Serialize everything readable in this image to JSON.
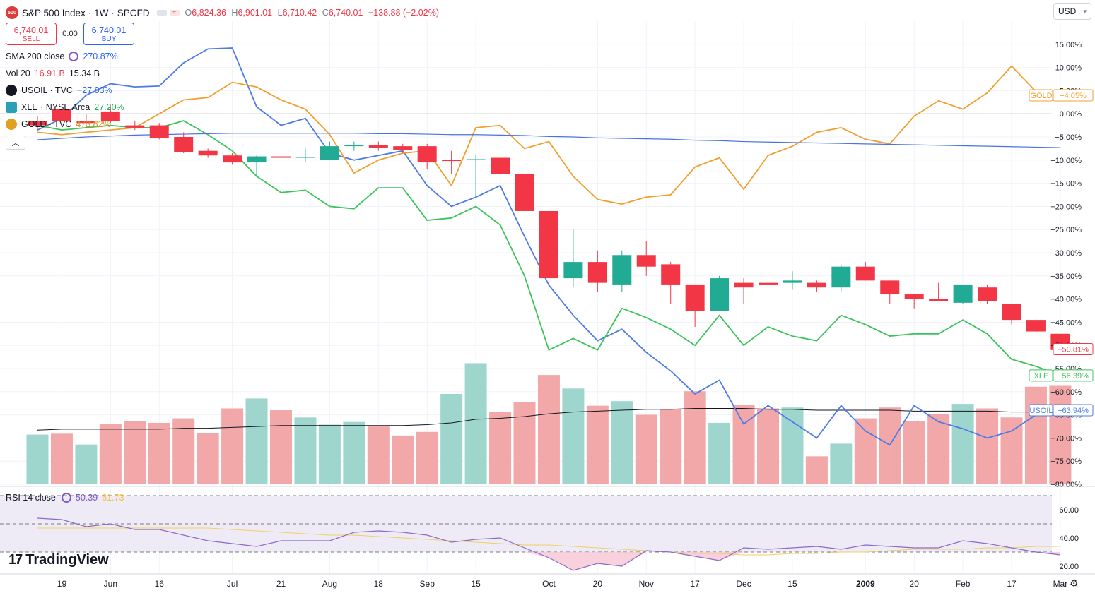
{
  "header": {
    "logo_text": "500",
    "symbol": "S&P 500 Index",
    "interval": "1W",
    "exchange": "SPCFD",
    "o_label": "O",
    "o": "6,824.36",
    "h_label": "H",
    "h": "6,901.01",
    "l_label": "L",
    "l": "6,710.42",
    "c_label": "C",
    "c": "6,740.01",
    "change": "−138.88 (−2.02%)"
  },
  "trade": {
    "sell_price": "6,740.01",
    "sell_label": "SELL",
    "spread": "0.00",
    "buy_price": "6,740.01",
    "buy_label": "BUY"
  },
  "indicators": {
    "sma": {
      "name": "SMA 200 close",
      "value": "270.87%"
    },
    "vol": {
      "name": "Vol 20",
      "v1": "16.91 B",
      "v2": "15.34 B"
    },
    "usoil": {
      "name": "USOIL · TVC",
      "value": "−27.83%"
    },
    "xle": {
      "name": "XLE · NYSE Arca",
      "value": "27.20%"
    },
    "gold": {
      "name": "GOLD · TVC",
      "value": "473.82%"
    },
    "rsi": {
      "name": "RSI 14 close",
      "v1": "50.39",
      "v2": "61.73"
    }
  },
  "currency": "USD",
  "brand": "TradingView",
  "colors": {
    "up": "#22ab94",
    "down": "#f23645",
    "usoil": "#4c7be8",
    "xle": "#3cc45a",
    "gold": "#f0a030",
    "sma": "#4a72e0",
    "rsi": "#8c6bc8",
    "rsi_ma": "#f0d060"
  },
  "chart_data": {
    "type": "candlestick",
    "y_unit": "percent",
    "ylim": [
      -80,
      20
    ],
    "y_ticks": [
      "15.00%",
      "10.00%",
      "5.00%",
      "0.00%",
      "−5.00%",
      "−10.00%",
      "−15.00%",
      "−20.00%",
      "−25.00%",
      "−30.00%",
      "−35.00%",
      "−40.00%",
      "−45.00%",
      "−50.00%",
      "−55.00%",
      "−60.00%",
      "−65.00%",
      "−70.00%",
      "−75.00%",
      "−80.00%"
    ],
    "y_tick_values": [
      15,
      10,
      5,
      0,
      -5,
      -10,
      -15,
      -20,
      -25,
      -30,
      -35,
      -40,
      -45,
      -50,
      -55,
      -60,
      -65,
      -70,
      -75,
      -80
    ],
    "x_ticks": [
      {
        "i": 1,
        "label": "19"
      },
      {
        "i": 3,
        "label": "Jun"
      },
      {
        "i": 5,
        "label": "16"
      },
      {
        "i": 8,
        "label": "Jul"
      },
      {
        "i": 10,
        "label": "21"
      },
      {
        "i": 12,
        "label": "Aug"
      },
      {
        "i": 14,
        "label": "18"
      },
      {
        "i": 16,
        "label": "Sep"
      },
      {
        "i": 18,
        "label": "15"
      },
      {
        "i": 21,
        "label": "Oct"
      },
      {
        "i": 23,
        "label": "20"
      },
      {
        "i": 25,
        "label": "Nov"
      },
      {
        "i": 27,
        "label": "17"
      },
      {
        "i": 29,
        "label": "Dec"
      },
      {
        "i": 31,
        "label": "15"
      },
      {
        "i": 34,
        "label": "2009"
      },
      {
        "i": 36,
        "label": "20"
      },
      {
        "i": 38,
        "label": "Feb"
      },
      {
        "i": 40,
        "label": "17"
      },
      {
        "i": 42,
        "label": "Mar"
      }
    ],
    "candles": [
      {
        "o": -1.5,
        "h": -0.5,
        "l": -3.5,
        "c": -2.5
      },
      {
        "o": 1.0,
        "h": 2.0,
        "l": -1.0,
        "c": -1.5
      },
      {
        "o": -1.5,
        "h": 0.0,
        "l": -3.0,
        "c": -2.0
      },
      {
        "o": 0.5,
        "h": 1.5,
        "l": -2.0,
        "c": -1.5
      },
      {
        "o": -2.5,
        "h": -1.5,
        "l": -3.5,
        "c": -3.0
      },
      {
        "o": -2.5,
        "h": -2.0,
        "l": -5.5,
        "c": -5.3
      },
      {
        "o": -5.0,
        "h": -4.0,
        "l": -8.5,
        "c": -8.2
      },
      {
        "o": -8.0,
        "h": -7.5,
        "l": -9.5,
        "c": -9.0
      },
      {
        "o": -9.0,
        "h": -8.5,
        "l": -11.0,
        "c": -10.5
      },
      {
        "o": -10.5,
        "h": -9.0,
        "l": -13.5,
        "c": -9.2
      },
      {
        "o": -9.2,
        "h": -7.5,
        "l": -10.0,
        "c": -9.5
      },
      {
        "o": -9.5,
        "h": -7.5,
        "l": -10.5,
        "c": -9.3
      },
      {
        "o": -10.0,
        "h": -6.0,
        "l": -10.0,
        "c": -7.0
      },
      {
        "o": -7.0,
        "h": -6.0,
        "l": -8.0,
        "c": -6.8
      },
      {
        "o": -6.8,
        "h": -6.0,
        "l": -8.0,
        "c": -7.3
      },
      {
        "o": -7.0,
        "h": -6.5,
        "l": -8.5,
        "c": -7.8
      },
      {
        "o": -7.0,
        "h": -6.5,
        "l": -12.0,
        "c": -10.5
      },
      {
        "o": -10.0,
        "h": -8.0,
        "l": -13.0,
        "c": -10.2
      },
      {
        "o": -10.0,
        "h": -9.0,
        "l": -18.0,
        "c": -9.8
      },
      {
        "o": -9.5,
        "h": -9.5,
        "l": -15.0,
        "c": -13.0
      },
      {
        "o": -13.0,
        "h": -13.0,
        "l": -21.0,
        "c": -21.0
      },
      {
        "o": -21.0,
        "h": -21.0,
        "l": -39.5,
        "c": -35.5
      },
      {
        "o": -35.5,
        "h": -25.0,
        "l": -37.5,
        "c": -32.0
      },
      {
        "o": -32.0,
        "h": -29.5,
        "l": -38.5,
        "c": -36.5
      },
      {
        "o": -37.0,
        "h": -29.5,
        "l": -38.5,
        "c": -30.5
      },
      {
        "o": -30.5,
        "h": -27.5,
        "l": -35.0,
        "c": -33.0
      },
      {
        "o": -32.5,
        "h": -32.0,
        "l": -41.0,
        "c": -37.0
      },
      {
        "o": -37.0,
        "h": -37.0,
        "l": -46.0,
        "c": -42.5
      },
      {
        "o": -42.5,
        "h": -35.0,
        "l": -42.5,
        "c": -35.5
      },
      {
        "o": -36.5,
        "h": -35.5,
        "l": -41.0,
        "c": -37.5
      },
      {
        "o": -36.5,
        "h": -34.5,
        "l": -38.5,
        "c": -37.0
      },
      {
        "o": -36.5,
        "h": -34.0,
        "l": -38.0,
        "c": -36.0
      },
      {
        "o": -36.5,
        "h": -36.0,
        "l": -38.5,
        "c": -37.5
      },
      {
        "o": -37.5,
        "h": -32.5,
        "l": -38.5,
        "c": -33.0
      },
      {
        "o": -33.0,
        "h": -32.0,
        "l": -36.0,
        "c": -36.0
      },
      {
        "o": -36.0,
        "h": -36.0,
        "l": -41.0,
        "c": -39.0
      },
      {
        "o": -39.0,
        "h": -39.0,
        "l": -42.0,
        "c": -40.0
      },
      {
        "o": -40.0,
        "h": -36.5,
        "l": -40.5,
        "c": -40.5
      },
      {
        "o": -40.8,
        "h": -37.0,
        "l": -41.0,
        "c": -37.0
      },
      {
        "o": -37.5,
        "h": -37.0,
        "l": -41.0,
        "c": -40.5
      },
      {
        "o": -41.0,
        "h": -41.0,
        "l": -45.5,
        "c": -44.5
      },
      {
        "o": -44.5,
        "h": -44.0,
        "l": -47.5,
        "c": -47.0
      },
      {
        "o": -47.5,
        "h": -47.5,
        "l": -52.0,
        "c": -51.0
      }
    ],
    "series": [
      {
        "name": "USOIL",
        "last_label": "−63.94%",
        "values": [
          -3.5,
          -1.0,
          4.0,
          6.5,
          5.8,
          6.0,
          11.0,
          14.0,
          14.2,
          1.5,
          -2.5,
          -1.0,
          -8.5,
          -10.0,
          -9.0,
          -8.0,
          -15.5,
          -20.0,
          -18.0,
          -15.5,
          -26.5,
          -37.0,
          -43.5,
          -49.0,
          -46.5,
          -51.5,
          -55.5,
          -60.5,
          -57.5,
          -67.0,
          -63.0,
          -66.5,
          -70.0,
          -63.0,
          -68.5,
          -71.5,
          -63.0,
          -66.5,
          -68.0,
          -70.0,
          -68.5,
          -65.0,
          -64.0
        ]
      },
      {
        "name": "XLE",
        "last_label": "−56.39%",
        "values": [
          -2.5,
          -3.5,
          -3.0,
          -2.5,
          -3.0,
          -3.0,
          -1.5,
          -4.5,
          -8.0,
          -13.5,
          -17.0,
          -16.5,
          -20.0,
          -20.5,
          -16.0,
          -16.0,
          -23.0,
          -22.5,
          -20.0,
          -24.0,
          -35.0,
          -51.0,
          -48.5,
          -51.0,
          -42.0,
          -44.0,
          -46.5,
          -50.0,
          -43.5,
          -50.0,
          -46.0,
          -48.0,
          -49.0,
          -43.5,
          -45.5,
          -48.0,
          -47.5,
          -47.5,
          -44.5,
          -47.5,
          -53.0,
          -54.5,
          -56.5
        ]
      },
      {
        "name": "GOLD",
        "last_label": "+4.05%",
        "values": [
          -4.0,
          -4.5,
          -4.0,
          -3.5,
          -3.0,
          0.0,
          3.0,
          3.5,
          6.8,
          5.8,
          3.0,
          1.0,
          -4.5,
          -12.8,
          -10.0,
          -8.5,
          -8.0,
          -15.5,
          -3.0,
          -2.5,
          -7.5,
          -6.0,
          -13.5,
          -18.5,
          -19.5,
          -18.0,
          -17.5,
          -11.5,
          -9.5,
          -16.3,
          -9.0,
          -7.0,
          -4.0,
          -3.0,
          -5.5,
          -6.5,
          -0.5,
          2.8,
          1.0,
          4.5,
          10.3,
          4.8,
          4.0
        ]
      },
      {
        "name": "SMA 200",
        "values": [
          -5.6,
          -5.3,
          -5.0,
          -4.8,
          -4.6,
          -4.5,
          -4.4,
          -4.3,
          -4.2,
          -4.2,
          -4.2,
          -4.2,
          -4.2,
          -4.2,
          -4.3,
          -4.3,
          -4.4,
          -4.5,
          -4.5,
          -4.6,
          -4.7,
          -4.9,
          -5.0,
          -5.2,
          -5.3,
          -5.4,
          -5.5,
          -5.7,
          -5.8,
          -6.0,
          -6.1,
          -6.2,
          -6.3,
          -6.4,
          -6.5,
          -6.6,
          -6.7,
          -6.8,
          -6.9,
          -7.0,
          -7.1,
          -7.2,
          -7.3
        ]
      }
    ],
    "volume": {
      "values": [
        0.55,
        0.56,
        0.44,
        0.67,
        0.7,
        0.68,
        0.73,
        0.57,
        0.84,
        0.95,
        0.82,
        0.74,
        0.66,
        0.69,
        0.64,
        0.54,
        0.58,
        1.0,
        1.34,
        0.8,
        0.91,
        1.21,
        1.06,
        0.87,
        0.92,
        0.77,
        0.83,
        1.03,
        0.68,
        0.88,
        0.84,
        0.85,
        0.31,
        0.45,
        0.73,
        0.85,
        0.7,
        0.78,
        0.89,
        0.84,
        0.74,
        1.08,
        1.09
      ],
      "up": [
        true,
        false,
        true,
        false,
        false,
        false,
        false,
        false,
        false,
        true,
        false,
        true,
        true,
        true,
        false,
        false,
        false,
        true,
        true,
        false,
        false,
        false,
        true,
        false,
        true,
        false,
        false,
        false,
        true,
        false,
        false,
        true,
        false,
        true,
        false,
        false,
        false,
        false,
        true,
        false,
        false,
        false,
        false
      ],
      "ma": [
        0.6,
        0.61,
        0.61,
        0.61,
        0.61,
        0.61,
        0.62,
        0.62,
        0.63,
        0.64,
        0.65,
        0.65,
        0.65,
        0.65,
        0.65,
        0.65,
        0.66,
        0.68,
        0.72,
        0.73,
        0.75,
        0.78,
        0.8,
        0.81,
        0.82,
        0.83,
        0.83,
        0.84,
        0.84,
        0.84,
        0.83,
        0.83,
        0.82,
        0.82,
        0.82,
        0.82,
        0.81,
        0.81,
        0.81,
        0.81,
        0.8,
        0.8,
        0.8
      ]
    },
    "rsi": {
      "ylim": [
        15,
        75
      ],
      "y_ticks": [
        "60.00",
        "40.00",
        "20.00"
      ],
      "y_tick_values": [
        60,
        40,
        20
      ],
      "bands": [
        70,
        50,
        30
      ],
      "values": [
        54,
        53,
        48,
        50,
        46,
        46,
        42,
        38,
        36,
        34,
        38,
        38,
        38,
        44,
        45,
        44,
        42,
        37,
        39,
        40,
        33,
        26,
        17,
        22,
        20,
        31,
        30,
        27,
        24,
        33,
        32,
        33,
        34,
        32,
        35,
        34,
        33,
        33,
        38,
        36,
        33,
        30,
        28
      ],
      "ma": [
        47,
        47,
        47,
        47,
        47,
        47,
        47,
        47,
        46,
        45,
        44,
        43,
        42,
        42,
        41,
        40,
        39,
        38,
        37,
        36,
        35,
        35,
        34,
        33,
        32,
        31,
        30,
        29,
        29,
        28,
        28,
        29,
        29,
        30,
        30,
        31,
        32,
        32,
        32,
        33,
        33,
        34,
        34
      ]
    }
  }
}
